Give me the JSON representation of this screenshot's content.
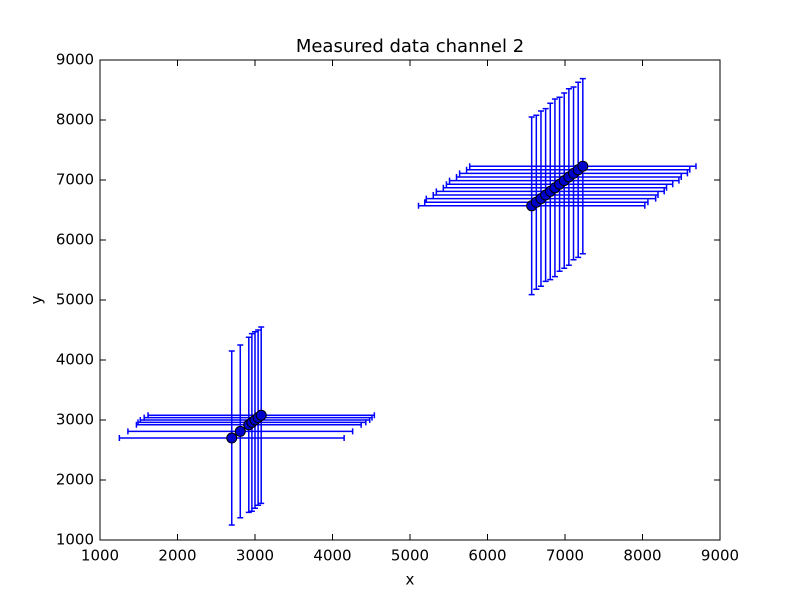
{
  "chart_data": {
    "type": "errorbar",
    "title": "Measured data channel 2",
    "x_label": "x",
    "y_label": "y",
    "x": [
      2700,
      2810,
      2920,
      2960,
      3000,
      3040,
      3080,
      6570,
      6630,
      6690,
      6750,
      6810,
      6870,
      6930,
      6990,
      7050,
      7110,
      7170,
      7230
    ],
    "y": [
      2700,
      2810,
      2920,
      2960,
      3000,
      3040,
      3080,
      6570,
      6630,
      6690,
      6750,
      6810,
      6870,
      6930,
      6990,
      7050,
      7110,
      7170,
      7230
    ],
    "xerr": [
      1450,
      1450,
      1450,
      1470,
      1480,
      1470,
      1460,
      1460,
      1440,
      1480,
      1450,
      1470,
      1440,
      1460,
      1480,
      1450,
      1470,
      1440,
      1460
    ],
    "yerr": [
      1450,
      1440,
      1460,
      1480,
      1470,
      1460,
      1470,
      1480,
      1450,
      1460,
      1440,
      1470,
      1480,
      1450,
      1460,
      1470,
      1440,
      1460,
      1460
    ],
    "color": "#0000ff",
    "marker_color": "#0000cc",
    "xlim": [
      1000,
      9000
    ],
    "ylim": [
      1000,
      9000
    ],
    "xticks": [
      1000,
      2000,
      3000,
      4000,
      5000,
      6000,
      7000,
      8000,
      9000
    ],
    "yticks": [
      1000,
      2000,
      3000,
      4000,
      5000,
      6000,
      7000,
      8000,
      9000
    ]
  }
}
